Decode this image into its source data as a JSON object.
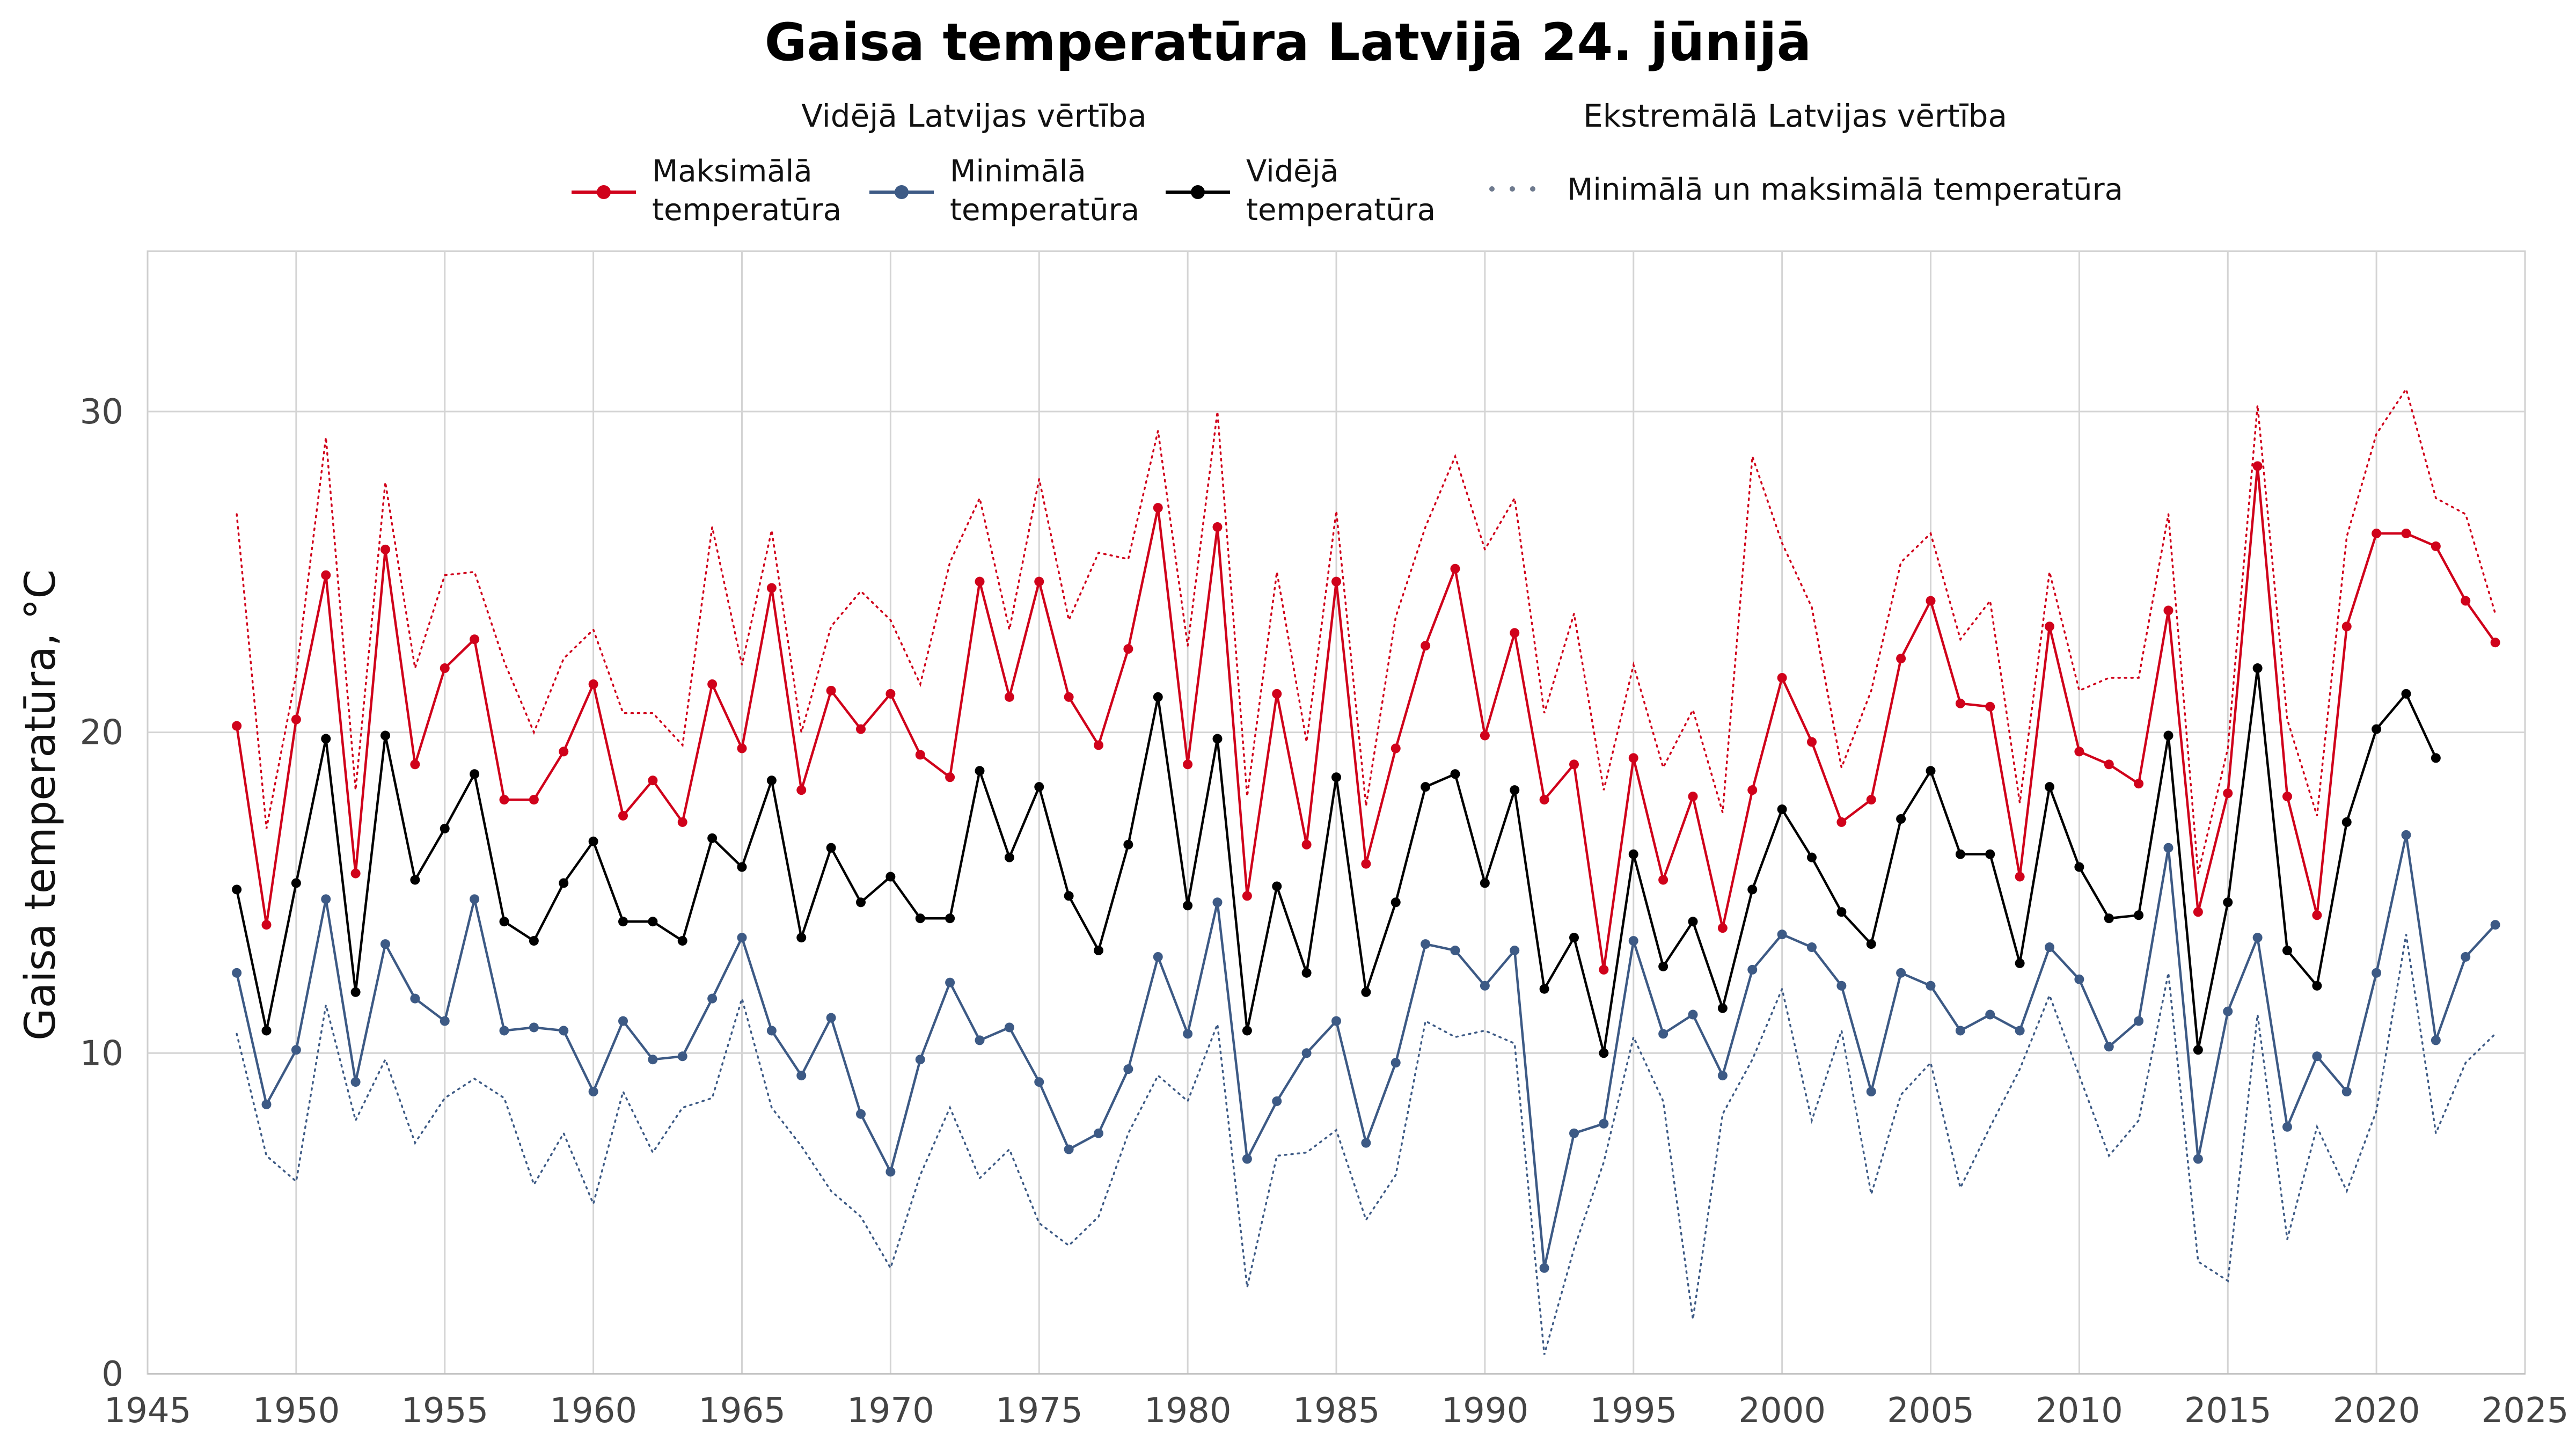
{
  "chart_data": {
    "type": "line",
    "title": "Gaisa temperatūra Latvijā 24. jūnijā",
    "ylabel": "Gaisa temperatūra, °C",
    "xlabel": "",
    "xlim": [
      1945,
      2025
    ],
    "ylim": [
      0,
      35
    ],
    "x_ticks": [
      1945,
      1950,
      1955,
      1960,
      1965,
      1970,
      1975,
      1980,
      1985,
      1990,
      1995,
      2000,
      2005,
      2010,
      2015,
      2020,
      2025
    ],
    "y_ticks": [
      0,
      10,
      20,
      30
    ],
    "grid": true,
    "legend": {
      "placement": "top",
      "group_mean": "Vidējā Latvijas vērtība",
      "group_extreme": "Ekstremālā Latvijas vērtība",
      "entries": [
        {
          "series": "max",
          "line1": "Maksimālā",
          "line2": "temperatūra"
        },
        {
          "series": "min",
          "line1": "Minimālā",
          "line2": "temperatūra"
        },
        {
          "series": "mean",
          "line1": "Vidējā",
          "line2": "temperatūra"
        },
        {
          "series": "extreme",
          "line1": "Minimālā un maksimālā temperatūra",
          "line2": ""
        }
      ]
    },
    "colors": {
      "max": "#d0021b",
      "min": "#3d5a85",
      "mean": "#000000",
      "extreme_max": "#d0021b",
      "extreme_min": "#3d5a85"
    },
    "x": [
      1948,
      1949,
      1950,
      1951,
      1952,
      1953,
      1954,
      1955,
      1956,
      1957,
      1958,
      1959,
      1960,
      1961,
      1962,
      1963,
      1964,
      1965,
      1966,
      1967,
      1968,
      1969,
      1970,
      1971,
      1972,
      1973,
      1974,
      1975,
      1976,
      1977,
      1978,
      1979,
      1980,
      1981,
      1982,
      1983,
      1984,
      1985,
      1986,
      1987,
      1988,
      1989,
      1990,
      1991,
      1992,
      1993,
      1994,
      1995,
      1996,
      1997,
      1998,
      1999,
      2000,
      2001,
      2002,
      2003,
      2004,
      2005,
      2006,
      2007,
      2008,
      2009,
      2010,
      2011,
      2012,
      2013,
      2014,
      2015,
      2016,
      2017,
      2018,
      2019,
      2020,
      2021,
      2022,
      2023,
      2024
    ],
    "series": [
      {
        "name": "Maksimālā temperatūra",
        "key": "max",
        "values": [
          20.2,
          14.0,
          20.4,
          24.9,
          15.6,
          25.7,
          19.0,
          22.0,
          22.9,
          17.9,
          17.9,
          19.4,
          21.5,
          17.4,
          18.5,
          17.2,
          21.5,
          19.5,
          24.5,
          18.2,
          21.3,
          20.1,
          21.2,
          19.3,
          18.6,
          24.7,
          21.1,
          24.7,
          21.1,
          19.6,
          22.6,
          27.0,
          19.0,
          26.4,
          14.9,
          21.2,
          16.5,
          24.7,
          15.9,
          19.5,
          22.7,
          25.1,
          19.9,
          23.1,
          17.9,
          19.0,
          12.6,
          19.2,
          15.4,
          18.0,
          13.9,
          18.2,
          21.7,
          19.7,
          17.2,
          17.9,
          22.3,
          24.1,
          20.9,
          20.8,
          15.5,
          23.3,
          19.4,
          19.0,
          18.4,
          23.8,
          14.4,
          18.1,
          28.3,
          18.0,
          14.3,
          23.3,
          26.2,
          26.2,
          25.8,
          24.1,
          22.8
        ]
      },
      {
        "name": "Minimālā temperatūra",
        "key": "min",
        "values": [
          12.5,
          8.4,
          10.1,
          14.8,
          9.1,
          13.4,
          11.7,
          11.0,
          14.8,
          10.7,
          10.8,
          10.7,
          8.8,
          11.0,
          9.8,
          9.9,
          11.7,
          13.6,
          10.7,
          9.3,
          11.1,
          8.1,
          6.3,
          9.8,
          12.2,
          10.4,
          10.8,
          9.1,
          7.0,
          7.5,
          9.5,
          13.0,
          10.6,
          14.7,
          6.7,
          8.5,
          10.0,
          11.0,
          7.2,
          9.7,
          13.4,
          13.2,
          12.1,
          13.2,
          3.3,
          7.5,
          7.8,
          13.5,
          10.6,
          11.2,
          9.3,
          12.6,
          13.7,
          13.3,
          12.1,
          8.8,
          12.5,
          12.1,
          10.7,
          11.2,
          10.7,
          13.3,
          12.3,
          10.2,
          11.0,
          16.4,
          6.7,
          11.3,
          13.6,
          7.7,
          9.9,
          8.8,
          12.5,
          16.8,
          10.4,
          13.0,
          14.0
        ]
      },
      {
        "name": "Vidējā temperatūra",
        "key": "mean",
        "values": [
          15.1,
          10.7,
          15.3,
          19.8,
          11.9,
          19.9,
          15.4,
          17.0,
          18.7,
          14.1,
          13.5,
          15.3,
          16.6,
          14.1,
          14.1,
          13.5,
          16.7,
          15.8,
          18.5,
          13.6,
          16.4,
          14.7,
          15.5,
          14.2,
          14.2,
          18.8,
          16.1,
          18.3,
          14.9,
          13.2,
          16.5,
          21.1,
          14.6,
          19.8,
          10.7,
          15.2,
          12.5,
          18.6,
          11.9,
          14.7,
          18.3,
          18.7,
          15.3,
          18.2,
          12.0,
          13.6,
          10.0,
          16.2,
          12.7,
          14.1,
          11.4,
          15.1,
          17.6,
          16.1,
          14.4,
          13.4,
          17.3,
          18.8,
          16.2,
          16.2,
          12.8,
          18.3,
          15.8,
          14.2,
          14.3,
          19.9,
          10.1,
          14.7,
          22.0,
          13.2,
          12.1,
          17.2,
          20.1,
          21.2,
          19.2,
          null,
          null
        ]
      },
      {
        "name": "Maksimālā temperatūra (ekstremālā)",
        "key": "extreme_max",
        "values": [
          26.8,
          17.0,
          21.8,
          29.2,
          18.2,
          27.8,
          22.0,
          24.9,
          25.0,
          22.2,
          20.0,
          22.3,
          23.2,
          20.6,
          20.6,
          19.6,
          26.4,
          22.1,
          26.3,
          20.0,
          23.3,
          24.4,
          23.5,
          21.5,
          25.3,
          27.3,
          23.2,
          27.9,
          23.5,
          25.6,
          25.4,
          29.4,
          22.7,
          30.0,
          18.0,
          25.0,
          19.7,
          26.9,
          17.7,
          23.6,
          26.4,
          28.6,
          25.7,
          27.3,
          20.6,
          23.7,
          18.2,
          22.1,
          18.9,
          20.7,
          17.5,
          28.6,
          25.9,
          23.9,
          18.9,
          21.3,
          25.3,
          26.2,
          22.9,
          24.1,
          17.8,
          25.0,
          21.3,
          21.7,
          21.7,
          26.8,
          15.6,
          19.5,
          30.2,
          20.4,
          17.4,
          26.1,
          29.3,
          30.7,
          27.3,
          26.8,
          23.7
        ]
      },
      {
        "name": "Minimālā temperatūra (ekstremālā)",
        "key": "extreme_min",
        "values": [
          10.6,
          6.8,
          6.0,
          11.5,
          7.9,
          9.8,
          7.2,
          8.6,
          9.2,
          8.6,
          5.9,
          7.5,
          5.3,
          8.8,
          6.9,
          8.3,
          8.6,
          11.7,
          8.3,
          7.1,
          5.7,
          4.9,
          3.3,
          6.2,
          8.3,
          6.1,
          7.0,
          4.7,
          4.0,
          4.9,
          7.5,
          9.3,
          8.5,
          10.9,
          2.7,
          6.8,
          6.9,
          7.6,
          4.8,
          6.2,
          11.0,
          10.5,
          10.7,
          10.3,
          0.6,
          3.9,
          6.6,
          10.5,
          8.5,
          1.7,
          8.1,
          9.8,
          12.0,
          7.9,
          10.7,
          5.6,
          8.7,
          9.7,
          5.8,
          7.7,
          9.5,
          11.8,
          9.3,
          6.8,
          7.9,
          12.5,
          3.5,
          2.9,
          11.2,
          4.2,
          7.7,
          5.7,
          8.2,
          13.7,
          7.5,
          9.7,
          10.6
        ]
      }
    ]
  }
}
